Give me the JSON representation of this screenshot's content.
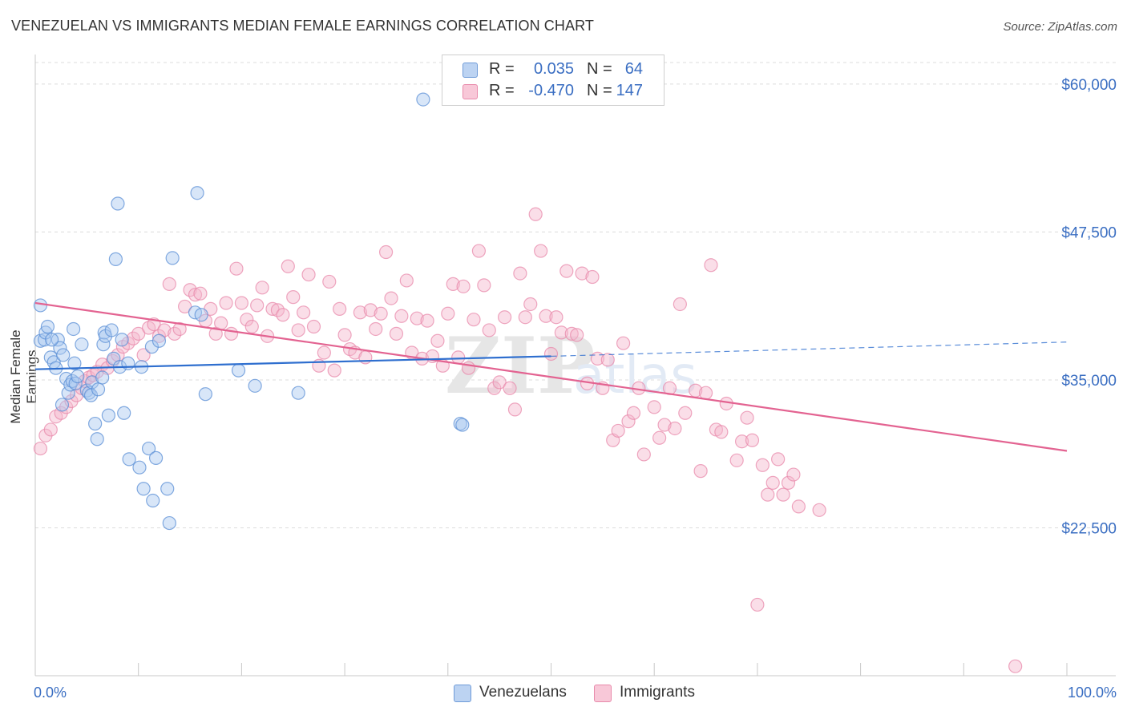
{
  "title": "VENEZUELAN VS IMMIGRANTS MEDIAN FEMALE EARNINGS CORRELATION CHART",
  "source": "Source: ZipAtlas.com",
  "colors": {
    "blue": "#2f6fcf",
    "pink": "#e36391",
    "blue_fill": "#a9c8f0",
    "pink_fill": "#f5b6cc",
    "tick_text": "#3a6ec2"
  },
  "legend": {
    "rows": [
      {
        "r_label": "R =",
        "r_value": "0.035",
        "n_label": "N =",
        "n_value": "64"
      },
      {
        "r_label": "R =",
        "r_value": "-0.470",
        "n_label": "N =",
        "n_value": "147"
      }
    ]
  },
  "bottom_legend": {
    "series1": "Venezuelans",
    "series2": "Immigrants"
  },
  "chart_data": {
    "type": "scatter",
    "title": "VENEZUELAN VS IMMIGRANTS MEDIAN FEMALE EARNINGS CORRELATION CHART",
    "ylabel": "Median Female Earnings",
    "xlabel": "",
    "x_tick_labels": [
      "0.0%",
      "100.0%"
    ],
    "y_tick_labels": [
      "$22,500",
      "$35,000",
      "$47,500",
      "$60,000"
    ],
    "y_ticks": [
      22500,
      35000,
      47500,
      60000
    ],
    "xlim": [
      0,
      100
    ],
    "ylim": [
      10000,
      62500
    ],
    "grid": true,
    "series": [
      {
        "name": "Venezuelans",
        "color": "#2f6fcf",
        "fill": "#a9c8f0",
        "trend": {
          "x0": 0,
          "y0": 35900,
          "x1": 50,
          "y1": 37000,
          "dashed_to_x": 100,
          "dashed_to_y": 38200
        },
        "points": [
          [
            0.5,
            41300
          ],
          [
            0.5,
            38300
          ],
          [
            0.9,
            38400
          ],
          [
            1.0,
            39000
          ],
          [
            1.2,
            39500
          ],
          [
            1.5,
            36900
          ],
          [
            1.8,
            36500
          ],
          [
            2.0,
            36000
          ],
          [
            2.2,
            38400
          ],
          [
            2.4,
            37700
          ],
          [
            2.6,
            32900
          ],
          [
            2.7,
            37100
          ],
          [
            3.0,
            35100
          ],
          [
            3.2,
            33900
          ],
          [
            3.4,
            34600
          ],
          [
            3.6,
            34900
          ],
          [
            3.7,
            39300
          ],
          [
            3.8,
            36400
          ],
          [
            3.9,
            34700
          ],
          [
            4.1,
            35300
          ],
          [
            4.5,
            38000
          ],
          [
            5.0,
            34100
          ],
          [
            5.2,
            33900
          ],
          [
            5.4,
            33700
          ],
          [
            5.5,
            34800
          ],
          [
            5.8,
            31300
          ],
          [
            6.0,
            30000
          ],
          [
            6.1,
            34200
          ],
          [
            6.5,
            35200
          ],
          [
            6.6,
            38000
          ],
          [
            6.7,
            39000
          ],
          [
            6.8,
            38700
          ],
          [
            7.1,
            32000
          ],
          [
            7.4,
            39200
          ],
          [
            7.6,
            36800
          ],
          [
            7.8,
            45200
          ],
          [
            8.0,
            49900
          ],
          [
            8.2,
            36100
          ],
          [
            8.4,
            38400
          ],
          [
            8.6,
            32200
          ],
          [
            9.0,
            36400
          ],
          [
            9.1,
            28300
          ],
          [
            10.1,
            27600
          ],
          [
            10.3,
            36100
          ],
          [
            10.5,
            25800
          ],
          [
            11.0,
            29200
          ],
          [
            11.3,
            37800
          ],
          [
            11.4,
            24800
          ],
          [
            11.7,
            28400
          ],
          [
            12.0,
            38300
          ],
          [
            12.8,
            25800
          ],
          [
            13.0,
            22900
          ],
          [
            13.3,
            45300
          ],
          [
            15.5,
            40700
          ],
          [
            16.1,
            40500
          ],
          [
            15.7,
            50800
          ],
          [
            16.5,
            33800
          ],
          [
            19.7,
            35800
          ],
          [
            21.3,
            34500
          ],
          [
            25.5,
            33900
          ],
          [
            37.6,
            58700
          ],
          [
            41.2,
            31300
          ],
          [
            41.4,
            31200
          ],
          [
            1.6,
            38400
          ]
        ]
      },
      {
        "name": "Immigrants",
        "color": "#e36391",
        "fill": "#f5b6cc",
        "trend": {
          "x0": 0,
          "y0": 41500,
          "x1": 100,
          "y1": 29000
        },
        "points": [
          [
            0.5,
            29200
          ],
          [
            1.0,
            30300
          ],
          [
            1.5,
            30800
          ],
          [
            2.0,
            31900
          ],
          [
            2.5,
            32200
          ],
          [
            3.0,
            32700
          ],
          [
            3.5,
            33200
          ],
          [
            4.0,
            33700
          ],
          [
            4.5,
            34300
          ],
          [
            4.8,
            34900
          ],
          [
            5.2,
            35200
          ],
          [
            5.6,
            35400
          ],
          [
            6.0,
            35700
          ],
          [
            6.5,
            36300
          ],
          [
            7.0,
            36000
          ],
          [
            7.5,
            36600
          ],
          [
            8.0,
            37100
          ],
          [
            8.5,
            37800
          ],
          [
            9.0,
            38100
          ],
          [
            9.5,
            38500
          ],
          [
            10.0,
            38900
          ],
          [
            10.5,
            37100
          ],
          [
            11.0,
            39400
          ],
          [
            11.5,
            39700
          ],
          [
            12.0,
            38700
          ],
          [
            12.5,
            39200
          ],
          [
            13.0,
            43100
          ],
          [
            13.5,
            38900
          ],
          [
            14.0,
            39300
          ],
          [
            14.5,
            41200
          ],
          [
            15.0,
            42600
          ],
          [
            15.5,
            42200
          ],
          [
            16.0,
            42300
          ],
          [
            16.5,
            40000
          ],
          [
            17.0,
            41000
          ],
          [
            17.5,
            38900
          ],
          [
            18.0,
            39800
          ],
          [
            18.5,
            41500
          ],
          [
            19.0,
            38900
          ],
          [
            19.5,
            44400
          ],
          [
            20.0,
            41500
          ],
          [
            20.5,
            40100
          ],
          [
            21.0,
            39500
          ],
          [
            21.5,
            41300
          ],
          [
            22.0,
            42800
          ],
          [
            22.5,
            38700
          ],
          [
            23.0,
            41000
          ],
          [
            23.5,
            40900
          ],
          [
            24.0,
            40500
          ],
          [
            24.5,
            44600
          ],
          [
            25.0,
            42000
          ],
          [
            25.5,
            39200
          ],
          [
            26.0,
            40700
          ],
          [
            26.5,
            43900
          ],
          [
            27.0,
            39500
          ],
          [
            27.5,
            36200
          ],
          [
            28.0,
            37300
          ],
          [
            28.5,
            43300
          ],
          [
            29.0,
            35800
          ],
          [
            29.5,
            41000
          ],
          [
            30.0,
            38800
          ],
          [
            30.5,
            37600
          ],
          [
            31.0,
            37300
          ],
          [
            31.5,
            40700
          ],
          [
            32.0,
            36900
          ],
          [
            32.5,
            40900
          ],
          [
            33.0,
            39300
          ],
          [
            33.5,
            40600
          ],
          [
            34.0,
            45800
          ],
          [
            34.5,
            41900
          ],
          [
            35.0,
            38900
          ],
          [
            35.5,
            40400
          ],
          [
            36.0,
            43400
          ],
          [
            36.5,
            37300
          ],
          [
            37.0,
            40200
          ],
          [
            37.5,
            36800
          ],
          [
            38.0,
            40000
          ],
          [
            38.5,
            37000
          ],
          [
            39.0,
            38300
          ],
          [
            39.5,
            36200
          ],
          [
            40.0,
            40600
          ],
          [
            40.5,
            43100
          ],
          [
            41.0,
            36900
          ],
          [
            41.5,
            42900
          ],
          [
            42.0,
            36000
          ],
          [
            42.5,
            40100
          ],
          [
            43.0,
            45900
          ],
          [
            43.5,
            43000
          ],
          [
            44.0,
            39200
          ],
          [
            44.5,
            34300
          ],
          [
            45.0,
            34800
          ],
          [
            45.5,
            40300
          ],
          [
            46.0,
            34300
          ],
          [
            46.5,
            32500
          ],
          [
            47.0,
            44000
          ],
          [
            47.5,
            40300
          ],
          [
            48.0,
            41400
          ],
          [
            48.5,
            49000
          ],
          [
            49.0,
            45900
          ],
          [
            49.5,
            40400
          ],
          [
            50.0,
            37200
          ],
          [
            50.5,
            40300
          ],
          [
            51.0,
            39000
          ],
          [
            51.5,
            44200
          ],
          [
            52.0,
            38900
          ],
          [
            52.5,
            38800
          ],
          [
            53.0,
            44000
          ],
          [
            53.5,
            34700
          ],
          [
            54.0,
            43700
          ],
          [
            54.5,
            36800
          ],
          [
            55.0,
            34300
          ],
          [
            55.5,
            36700
          ],
          [
            56.0,
            29900
          ],
          [
            56.5,
            30700
          ],
          [
            57.0,
            38100
          ],
          [
            57.5,
            31500
          ],
          [
            58.0,
            32200
          ],
          [
            58.5,
            34300
          ],
          [
            59.0,
            28700
          ],
          [
            60.0,
            32700
          ],
          [
            60.5,
            30100
          ],
          [
            61.0,
            31200
          ],
          [
            61.5,
            34300
          ],
          [
            62.0,
            30900
          ],
          [
            62.5,
            41400
          ],
          [
            63.0,
            32200
          ],
          [
            64.0,
            34100
          ],
          [
            64.5,
            27300
          ],
          [
            65.0,
            33900
          ],
          [
            65.5,
            44700
          ],
          [
            66.0,
            30800
          ],
          [
            66.5,
            30600
          ],
          [
            67.0,
            33000
          ],
          [
            68.0,
            28200
          ],
          [
            68.5,
            29800
          ],
          [
            69.0,
            31800
          ],
          [
            69.5,
            29900
          ],
          [
            70.0,
            16000
          ],
          [
            70.5,
            27800
          ],
          [
            71.0,
            25300
          ],
          [
            71.5,
            26300
          ],
          [
            72.0,
            28300
          ],
          [
            72.5,
            25300
          ],
          [
            73.0,
            26300
          ],
          [
            73.5,
            27000
          ],
          [
            74.0,
            24300
          ],
          [
            76.0,
            24000
          ],
          [
            95.0,
            10800
          ]
        ]
      }
    ]
  }
}
